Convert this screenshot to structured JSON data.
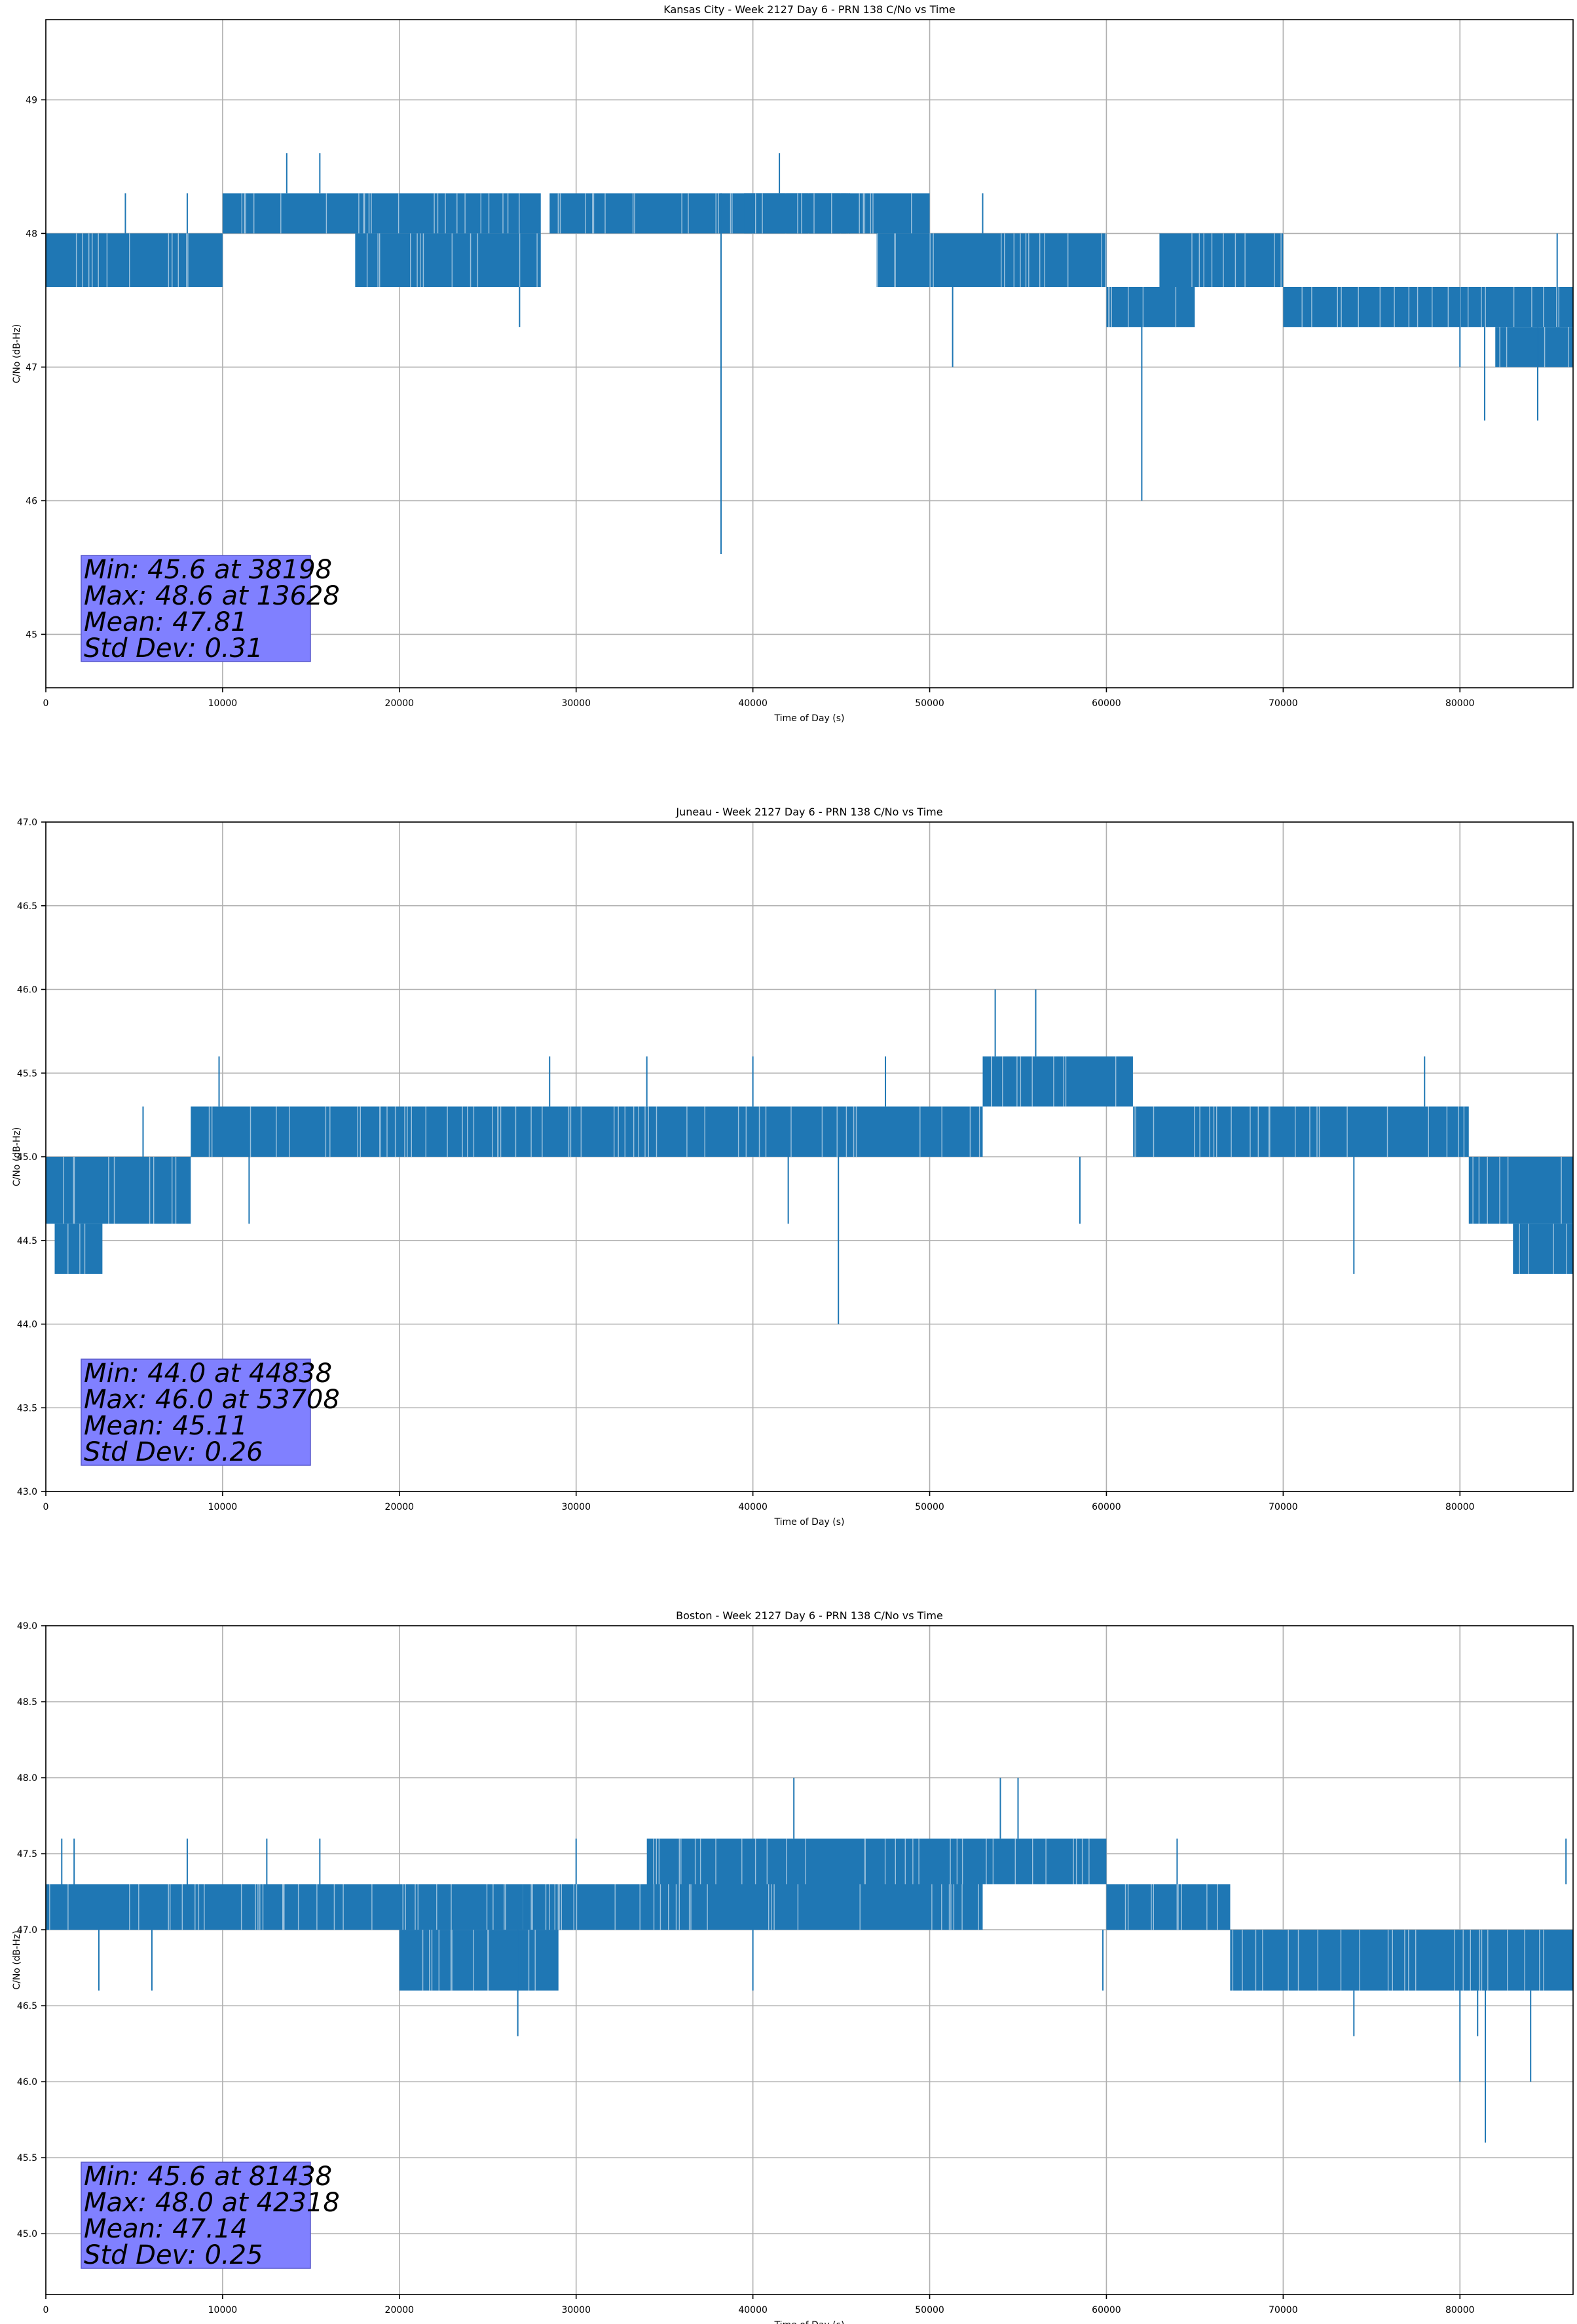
{
  "colors": {
    "series": "#1f77b4",
    "grid": "#b0b0b0",
    "stats_box": "#8080ff",
    "axes": "#000000"
  },
  "chart_data": [
    {
      "type": "line",
      "title": "Kansas City - Week 2127 Day 6 - PRN 138 C/No vs Time",
      "xlabel": "Time of Day (s)",
      "ylabel": "C/No (dB-Hz)",
      "xlim": [
        0,
        86400
      ],
      "ylim": [
        44.6,
        49.6
      ],
      "xticks": [
        0,
        10000,
        20000,
        30000,
        40000,
        50000,
        60000,
        70000,
        80000
      ],
      "yticks": [
        45,
        46,
        47,
        48,
        49
      ],
      "ytick_labels": [
        "45",
        "46",
        "47",
        "48",
        "49"
      ],
      "grid": true,
      "stats": [
        "Min: 45.6 at 38198",
        "Max: 48.6 at 13628",
        "Mean: 47.81",
        "Std Dev: 0.31"
      ],
      "series": [
        {
          "dense_bands": [
            {
              "x": [
                0,
                10000
              ],
              "low": 47.6,
              "high": 48.0
            },
            {
              "x": [
                10000,
                28000
              ],
              "low": 48.0,
              "high": 48.3
            },
            {
              "x": [
                17500,
                28000
              ],
              "low": 47.6,
              "high": 48.0
            },
            {
              "x": [
                28500,
                45500
              ],
              "low": 48.0,
              "high": 48.3
            },
            {
              "x": [
                39500,
                50000
              ],
              "low": 48.0,
              "high": 48.3
            },
            {
              "x": [
                47000,
                60000
              ],
              "low": 47.6,
              "high": 48.0
            },
            {
              "x": [
                60000,
                65000
              ],
              "low": 47.3,
              "high": 47.6
            },
            {
              "x": [
                63000,
                70000
              ],
              "low": 47.6,
              "high": 48.0
            },
            {
              "x": [
                70000,
                86400
              ],
              "low": 47.3,
              "high": 47.6
            },
            {
              "x": [
                82000,
                86400
              ],
              "low": 47.0,
              "high": 47.3
            }
          ],
          "spikes": [
            {
              "x": 38198,
              "low": 45.6,
              "high": 48.3
            },
            {
              "x": 62000,
              "low": 46.0,
              "high": 47.6
            },
            {
              "x": 81400,
              "low": 46.6,
              "high": 47.3
            },
            {
              "x": 84400,
              "low": 46.6,
              "high": 47.3
            },
            {
              "x": 51300,
              "low": 47.0,
              "high": 47.6
            },
            {
              "x": 80000,
              "low": 47.0,
              "high": 47.6
            },
            {
              "x": 13628,
              "low": 48.3,
              "high": 48.6
            },
            {
              "x": 15500,
              "low": 48.3,
              "high": 48.6
            },
            {
              "x": 41500,
              "low": 48.3,
              "high": 48.6
            },
            {
              "x": 26800,
              "low": 47.3,
              "high": 47.6
            },
            {
              "x": 4500,
              "low": 48.0,
              "high": 48.3
            },
            {
              "x": 8000,
              "low": 48.0,
              "high": 48.3
            },
            {
              "x": 53000,
              "low": 48.0,
              "high": 48.3
            },
            {
              "x": 85500,
              "low": 47.6,
              "high": 48.0
            }
          ]
        }
      ]
    },
    {
      "type": "line",
      "title": "Juneau - Week 2127 Day 6 - PRN 138 C/No vs Time",
      "xlabel": "Time of Day (s)",
      "ylabel": "C/No (dB-Hz)",
      "xlim": [
        0,
        86400
      ],
      "ylim": [
        43.0,
        47.0
      ],
      "xticks": [
        0,
        10000,
        20000,
        30000,
        40000,
        50000,
        60000,
        70000,
        80000
      ],
      "yticks": [
        43.0,
        43.5,
        44.0,
        44.5,
        45.0,
        45.5,
        46.0,
        46.5,
        47.0
      ],
      "ytick_labels": [
        "43.0",
        "43.5",
        "44.0",
        "44.5",
        "45.0",
        "45.5",
        "46.0",
        "46.5",
        "47.0"
      ],
      "grid": true,
      "stats": [
        "Min: 44.0 at 44838",
        "Max: 46.0 at 53708",
        "Mean: 45.11",
        "Std Dev: 0.26"
      ],
      "series": [
        {
          "dense_bands": [
            {
              "x": [
                0,
                8200
              ],
              "low": 44.6,
              "high": 45.0
            },
            {
              "x": [
                500,
                3200
              ],
              "low": 44.3,
              "high": 44.6
            },
            {
              "x": [
                8200,
                53000
              ],
              "low": 45.0,
              "high": 45.3
            },
            {
              "x": [
                53000,
                61500
              ],
              "low": 45.3,
              "high": 45.6
            },
            {
              "x": [
                61500,
                80500
              ],
              "low": 45.0,
              "high": 45.3
            },
            {
              "x": [
                80500,
                86400
              ],
              "low": 44.6,
              "high": 45.0
            },
            {
              "x": [
                83000,
                86400
              ],
              "low": 44.3,
              "high": 44.6
            }
          ],
          "spikes": [
            {
              "x": 44838,
              "low": 44.0,
              "high": 45.0
            },
            {
              "x": 53708,
              "low": 45.6,
              "high": 46.0
            },
            {
              "x": 56000,
              "low": 45.6,
              "high": 46.0
            },
            {
              "x": 74000,
              "low": 44.3,
              "high": 45.0
            },
            {
              "x": 9800,
              "low": 45.3,
              "high": 45.6
            },
            {
              "x": 28500,
              "low": 45.3,
              "high": 45.6
            },
            {
              "x": 34000,
              "low": 45.3,
              "high": 45.6
            },
            {
              "x": 40000,
              "low": 45.3,
              "high": 45.6
            },
            {
              "x": 47500,
              "low": 45.3,
              "high": 45.6
            },
            {
              "x": 78000,
              "low": 45.3,
              "high": 45.6
            },
            {
              "x": 11500,
              "low": 44.6,
              "high": 45.0
            },
            {
              "x": 42000,
              "low": 44.6,
              "high": 45.0
            },
            {
              "x": 58500,
              "low": 44.6,
              "high": 45.0
            },
            {
              "x": 5500,
              "low": 45.0,
              "high": 45.3
            }
          ]
        }
      ]
    },
    {
      "type": "line",
      "title": "Boston - Week 2127 Day 6 - PRN 138 C/No vs Time",
      "xlabel": "Time of Day (s)",
      "ylabel": "C/No (dB-Hz)",
      "xlim": [
        0,
        86400
      ],
      "ylim": [
        44.6,
        49.0
      ],
      "xticks": [
        0,
        10000,
        20000,
        30000,
        40000,
        50000,
        60000,
        70000,
        80000
      ],
      "yticks": [
        45.0,
        45.5,
        46.0,
        46.5,
        47.0,
        47.5,
        48.0,
        48.5,
        49.0
      ],
      "ytick_labels": [
        "45.0",
        "45.5",
        "46.0",
        "46.5",
        "47.0",
        "47.5",
        "48.0",
        "48.5",
        "49.0"
      ],
      "grid": true,
      "stats": [
        "Min: 45.6 at 81438",
        "Max: 48.0 at 42318",
        "Mean: 47.14",
        "Std Dev: 0.25"
      ],
      "series": [
        {
          "dense_bands": [
            {
              "x": [
                0,
                27000
              ],
              "low": 47.0,
              "high": 47.3
            },
            {
              "x": [
                27000,
                53000
              ],
              "low": 47.0,
              "high": 47.3
            },
            {
              "x": [
                34000,
                53000
              ],
              "low": 47.3,
              "high": 47.6
            },
            {
              "x": [
                53000,
                60000
              ],
              "low": 47.3,
              "high": 47.6
            },
            {
              "x": 60000,
              "high": 47.3,
              "low": 47.0,
              "x2": 67000
            },
            {
              "x": [
                67000,
                86400
              ],
              "low": 46.6,
              "high": 47.0
            },
            {
              "x": [
                60000,
                67000
              ],
              "low": 47.0,
              "high": 47.3
            },
            {
              "x": [
                20000,
                29000
              ],
              "low": 46.6,
              "high": 47.0
            }
          ],
          "spikes": [
            {
              "x": 81438,
              "low": 45.6,
              "high": 47.0
            },
            {
              "x": 42318,
              "low": 47.6,
              "high": 48.0
            },
            {
              "x": 54000,
              "low": 47.6,
              "high": 48.0
            },
            {
              "x": 55000,
              "low": 47.6,
              "high": 48.0
            },
            {
              "x": 80000,
              "low": 46.0,
              "high": 46.6
            },
            {
              "x": 81000,
              "low": 46.3,
              "high": 46.6
            },
            {
              "x": 84000,
              "low": 46.0,
              "high": 46.6
            },
            {
              "x": 74000,
              "low": 46.3,
              "high": 46.6
            },
            {
              "x": 26700,
              "low": 46.3,
              "high": 47.0
            },
            {
              "x": 900,
              "low": 47.3,
              "high": 47.6
            },
            {
              "x": 1600,
              "low": 47.3,
              "high": 47.6
            },
            {
              "x": 8000,
              "low": 47.3,
              "high": 47.6
            },
            {
              "x": 12500,
              "low": 47.3,
              "high": 47.6
            },
            {
              "x": 15500,
              "low": 47.3,
              "high": 47.6
            },
            {
              "x": 30000,
              "low": 47.3,
              "high": 47.6
            },
            {
              "x": 64000,
              "low": 47.3,
              "high": 47.6
            },
            {
              "x": 86000,
              "low": 47.3,
              "high": 47.6
            },
            {
              "x": 3000,
              "low": 46.6,
              "high": 47.0
            },
            {
              "x": 6000,
              "low": 46.6,
              "high": 47.0
            },
            {
              "x": 40000,
              "low": 46.6,
              "high": 47.0
            },
            {
              "x": 59800,
              "low": 46.6,
              "high": 47.0
            }
          ]
        }
      ]
    }
  ]
}
